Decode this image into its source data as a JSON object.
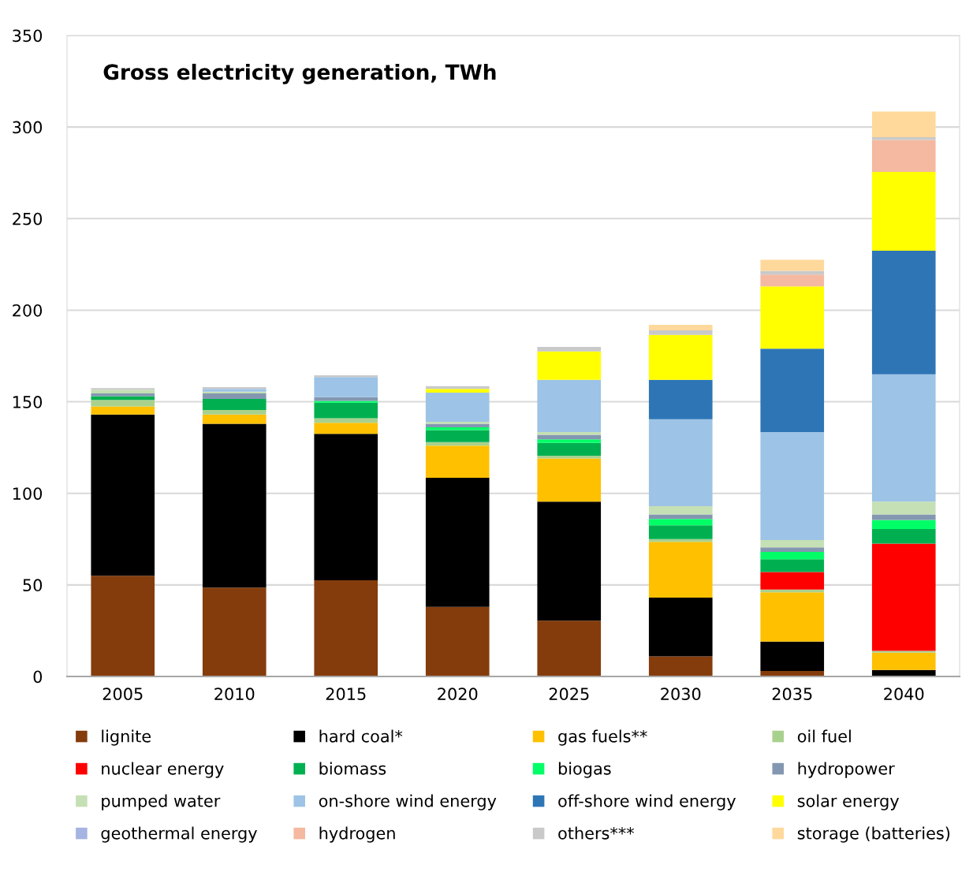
{
  "chart_data": {
    "type": "bar",
    "stacked": true,
    "title": "Gross electricity generation, TWh",
    "categories": [
      "2005",
      "2010",
      "2015",
      "2020",
      "2025",
      "2030",
      "2035",
      "2040"
    ],
    "ylim": [
      0,
      350
    ],
    "yticks": [
      0,
      50,
      100,
      150,
      200,
      250,
      300,
      350
    ],
    "grid": "y",
    "legend": "bottom",
    "series": [
      {
        "name": "lignite",
        "color": "#843c0c",
        "values": [
          55,
          48.5,
          52.5,
          38,
          30.5,
          11,
          3,
          0
        ]
      },
      {
        "name": "hard coal*",
        "color": "#000000",
        "values": [
          88,
          89.5,
          80,
          70.5,
          65,
          32,
          16,
          3.5
        ]
      },
      {
        "name": "gas fuels**",
        "color": "#ffc000",
        "values": [
          4.5,
          5,
          6,
          17.5,
          23.5,
          30.5,
          27,
          9.5
        ]
      },
      {
        "name": "oil fuel",
        "color": "#a9d18e",
        "values": [
          3.5,
          2.5,
          2.5,
          2,
          1.5,
          1.5,
          1.5,
          1
        ]
      },
      {
        "name": "nuclear energy",
        "color": "#ff0000",
        "values": [
          0,
          0,
          0,
          0,
          0,
          0,
          9.5,
          58.5
        ]
      },
      {
        "name": "biomass",
        "color": "#00b050",
        "values": [
          2,
          6,
          8.5,
          6.5,
          7,
          7.5,
          7,
          8
        ]
      },
      {
        "name": "biogas",
        "color": "#00ff66",
        "values": [
          0,
          0,
          1,
          1.5,
          2,
          3.5,
          4,
          5
        ]
      },
      {
        "name": "hydropower",
        "color": "#8497b0",
        "values": [
          1.5,
          3,
          2,
          2,
          2.5,
          2.5,
          2.5,
          3
        ]
      },
      {
        "name": "pumped water",
        "color": "#c5e0b4",
        "values": [
          2,
          1,
          null,
          1,
          1.5,
          4.5,
          4,
          7
        ]
      },
      {
        "name": "on-shore wind energy",
        "color": "#9dc3e6",
        "values": [
          0,
          1.5,
          11,
          16,
          28.5,
          47.5,
          59,
          69.5
        ]
      },
      {
        "name": "off-shore wind energy",
        "color": "#2e75b6",
        "values": [
          0,
          0,
          0,
          0,
          0,
          21.5,
          45.5,
          67.5
        ]
      },
      {
        "name": "solar energy",
        "color": "#ffff00",
        "values": [
          0,
          0,
          0,
          2,
          15.5,
          24.5,
          34,
          43
        ]
      },
      {
        "name": "geothermal energy",
        "color": "#a5b4e0",
        "values": [
          0,
          0,
          0,
          0,
          0,
          0,
          0,
          0
        ]
      },
      {
        "name": "hydrogen",
        "color": "#f4b9a0",
        "values": [
          0,
          0,
          0,
          0,
          0,
          0,
          6.5,
          17.5
        ]
      },
      {
        "name": "others***",
        "color": "#c9c9c9",
        "values": [
          1,
          1,
          1,
          1.5,
          2.5,
          2.5,
          2,
          1.5
        ]
      },
      {
        "name": "storage (batteries)",
        "color": "#ffd89b",
        "values": [
          0,
          0,
          0,
          0,
          0,
          3,
          6,
          14
        ]
      }
    ]
  }
}
